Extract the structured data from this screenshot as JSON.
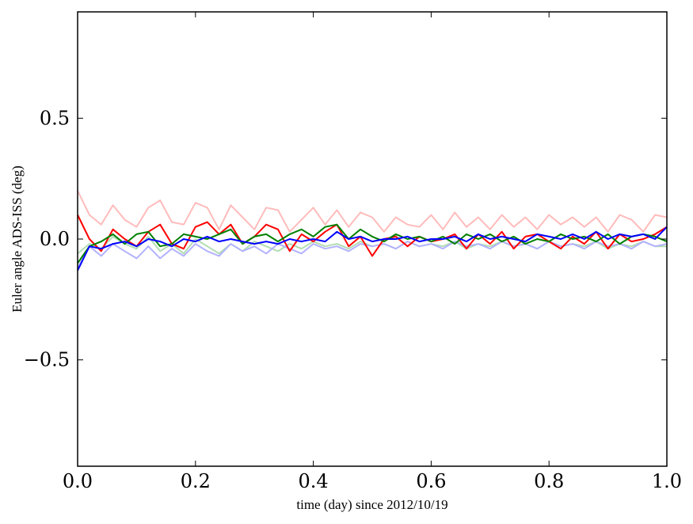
{
  "chart_data": {
    "type": "line",
    "title": "",
    "xlabel": "time (day) since 2012/10/19",
    "ylabel": "Euler angle ADS-ISS (deg)",
    "xlim": [
      0.0,
      1.0
    ],
    "ylim": [
      -0.94,
      0.94
    ],
    "x_ticks": [
      0.0,
      0.2,
      0.4,
      0.6,
      0.8,
      1.0
    ],
    "x_tick_labels": [
      "0.0",
      "0.2",
      "0.4",
      "0.6",
      "0.8",
      "1.0"
    ],
    "y_ticks": [
      0.5,
      0.0,
      -0.5
    ],
    "y_tick_labels": [
      "0.5",
      "0.0",
      "−0.5"
    ],
    "grid": false,
    "legend": "none",
    "x": [
      0.0,
      0.02,
      0.04,
      0.06,
      0.08,
      0.1,
      0.12,
      0.14,
      0.16,
      0.18,
      0.2,
      0.22,
      0.24,
      0.26,
      0.28,
      0.3,
      0.32,
      0.34,
      0.36,
      0.38,
      0.4,
      0.42,
      0.44,
      0.46,
      0.48,
      0.5,
      0.52,
      0.54,
      0.56,
      0.58,
      0.6,
      0.62,
      0.64,
      0.66,
      0.68,
      0.7,
      0.72,
      0.74,
      0.76,
      0.78,
      0.8,
      0.82,
      0.84,
      0.86,
      0.88,
      0.9,
      0.92,
      0.94,
      0.96,
      0.98,
      1.0
    ],
    "series": [
      {
        "name": "light red",
        "color": "#ffbbbb",
        "values": [
          0.2,
          0.1,
          0.06,
          0.14,
          0.08,
          0.05,
          0.13,
          0.16,
          0.07,
          0.06,
          0.15,
          0.13,
          0.04,
          0.14,
          0.09,
          0.04,
          0.13,
          0.12,
          0.03,
          0.08,
          0.13,
          0.06,
          0.12,
          0.05,
          0.11,
          0.09,
          0.03,
          0.09,
          0.06,
          0.05,
          0.1,
          0.04,
          0.11,
          0.05,
          0.09,
          0.04,
          0.1,
          0.05,
          0.09,
          0.04,
          0.1,
          0.06,
          0.09,
          0.05,
          0.09,
          0.03,
          0.1,
          0.08,
          0.03,
          0.1,
          0.09
        ]
      },
      {
        "name": "light green",
        "color": "#b2ddb2",
        "values": [
          -0.06,
          -0.02,
          -0.04,
          0.01,
          -0.02,
          -0.04,
          0.01,
          -0.05,
          -0.02,
          -0.06,
          0.0,
          -0.03,
          -0.06,
          -0.02,
          -0.05,
          -0.01,
          -0.03,
          -0.05,
          -0.02,
          -0.04,
          -0.01,
          -0.03,
          -0.02,
          -0.04,
          -0.01,
          -0.03,
          -0.02,
          -0.04,
          -0.01,
          -0.03,
          -0.02,
          -0.03,
          -0.01,
          -0.04,
          -0.02,
          -0.03,
          -0.01,
          -0.03,
          -0.02,
          -0.04,
          -0.01,
          -0.03,
          -0.02,
          -0.03,
          -0.01,
          -0.04,
          -0.02,
          -0.03,
          -0.01,
          -0.03,
          -0.03
        ]
      },
      {
        "name": "light blue",
        "color": "#b2b2ff",
        "values": [
          -0.12,
          -0.03,
          -0.07,
          -0.02,
          -0.05,
          -0.08,
          -0.03,
          -0.08,
          -0.04,
          -0.07,
          -0.02,
          -0.05,
          -0.07,
          -0.02,
          -0.05,
          -0.03,
          -0.06,
          -0.02,
          -0.04,
          -0.06,
          -0.02,
          -0.04,
          -0.03,
          -0.05,
          -0.02,
          -0.03,
          -0.02,
          -0.04,
          -0.01,
          -0.03,
          -0.02,
          -0.04,
          -0.01,
          -0.03,
          -0.02,
          -0.04,
          -0.01,
          -0.03,
          -0.02,
          -0.04,
          -0.01,
          -0.03,
          -0.02,
          -0.04,
          -0.01,
          -0.03,
          -0.02,
          -0.04,
          -0.01,
          -0.03,
          -0.02
        ]
      },
      {
        "name": "red",
        "color": "#ff0000",
        "values": [
          0.1,
          0.0,
          -0.05,
          0.04,
          0.0,
          -0.03,
          0.03,
          0.06,
          -0.02,
          -0.04,
          0.05,
          0.07,
          0.02,
          0.06,
          -0.02,
          0.01,
          0.06,
          0.04,
          -0.05,
          0.02,
          -0.01,
          0.03,
          0.06,
          -0.03,
          0.01,
          -0.07,
          0.0,
          0.01,
          -0.03,
          0.01,
          -0.01,
          0.0,
          0.02,
          -0.04,
          0.02,
          -0.02,
          0.03,
          -0.04,
          0.01,
          0.02,
          -0.01,
          -0.04,
          0.01,
          -0.02,
          0.03,
          -0.04,
          0.02,
          -0.01,
          0.0,
          0.02,
          0.05
        ]
      },
      {
        "name": "green",
        "color": "#008000",
        "values": [
          -0.1,
          -0.03,
          -0.01,
          0.02,
          -0.02,
          0.02,
          0.03,
          -0.03,
          -0.02,
          0.02,
          0.01,
          0.0,
          0.02,
          0.04,
          -0.02,
          0.01,
          0.02,
          -0.01,
          0.02,
          0.04,
          0.01,
          0.05,
          0.06,
          0.0,
          0.04,
          0.01,
          -0.01,
          0.02,
          0.0,
          0.01,
          -0.01,
          0.01,
          -0.02,
          0.02,
          0.0,
          0.02,
          -0.01,
          0.01,
          -0.02,
          0.0,
          -0.01,
          0.02,
          0.0,
          0.01,
          -0.01,
          0.02,
          -0.02,
          0.01,
          0.02,
          0.01,
          -0.01
        ]
      },
      {
        "name": "blue",
        "color": "#0000ff",
        "values": [
          -0.13,
          -0.03,
          -0.04,
          -0.02,
          -0.01,
          -0.03,
          0.0,
          -0.01,
          -0.03,
          0.0,
          -0.01,
          0.01,
          -0.01,
          0.0,
          -0.01,
          -0.02,
          -0.01,
          -0.02,
          0.0,
          -0.01,
          0.0,
          -0.01,
          0.03,
          0.0,
          0.01,
          -0.01,
          0.0,
          0.0,
          0.01,
          -0.01,
          0.0,
          0.0,
          0.01,
          -0.01,
          0.02,
          0.0,
          0.01,
          0.0,
          -0.01,
          0.02,
          0.01,
          0.0,
          0.02,
          0.0,
          0.03,
          0.0,
          0.02,
          0.01,
          0.02,
          0.0,
          0.05
        ]
      }
    ]
  }
}
